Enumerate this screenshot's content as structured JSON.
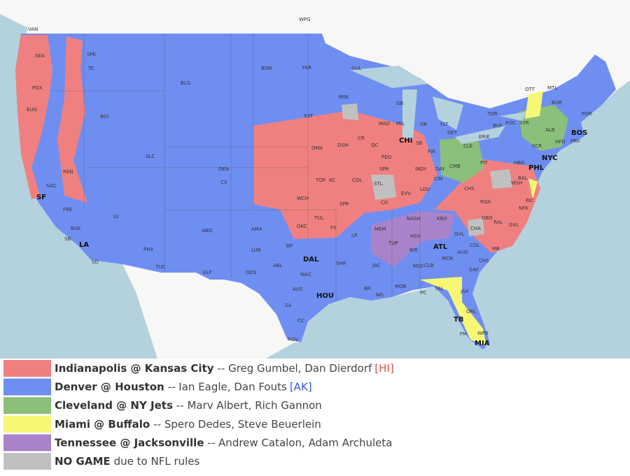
{
  "map_labels": [
    "WPG",
    "VAN",
    "SEA",
    "SPK",
    "TC",
    "PDX",
    "EUG",
    "BOI",
    "BLG",
    "BSM",
    "FAR",
    "DUL",
    "MIN",
    "GB",
    "SXF",
    "MAD",
    "MIL",
    "GR",
    "FLT",
    "DET",
    "TOR",
    "OTT",
    "MTL",
    "BUR",
    "POR",
    "BUF",
    "ROC",
    "SYR",
    "ALB",
    "BOS",
    "PRV",
    "HFD",
    "SCR",
    "ERIE",
    "CLE",
    "SB",
    "FW",
    "CHI",
    "DSM",
    "OMA",
    "CR",
    "QC",
    "PEO",
    "SPR",
    "INDY",
    "DAY",
    "CMB",
    "PIT",
    "HBG",
    "PHL",
    "NYC",
    "SLC",
    "DEN",
    "CS",
    "REN",
    "SAC",
    "SF",
    "TOP",
    "KC",
    "COL",
    "STL",
    "EVV",
    "LOU",
    "CIN",
    "CHS",
    "BAL",
    "WSH",
    "RIC",
    "WCH",
    "SPR",
    "CG",
    "NASH",
    "KNX",
    "FRE",
    "LV",
    "ABQ",
    "OKC",
    "TUL",
    "FS",
    "ROA",
    "NFK",
    "GBO",
    "RAL",
    "GVL",
    "CHA",
    "GVL",
    "HSV",
    "MEM",
    "LR",
    "BAK",
    "SB",
    "LA",
    "AMA",
    "LUB",
    "WF",
    "ATL",
    "BIR",
    "TUP",
    "COL",
    "MB",
    "AUG",
    "CHS",
    "SAV",
    "MCN",
    "CLB",
    "MGY",
    "JAC",
    "SHR",
    "DAL",
    "ABL",
    "ODS",
    "ELP",
    "TUC",
    "PHX",
    "SD",
    "WAC",
    "AUS",
    "HOU",
    "BR",
    "MOB",
    "NO",
    "PC",
    "TAL",
    "JAX",
    "ORL",
    "TB",
    "FM",
    "WPB",
    "MIA",
    "SA",
    "CC",
    "RGV"
  ],
  "legend": [
    {
      "game": "Indianapolis @ Kansas City",
      "announcers": "-- Greg Gumbel, Dan Dierdorf",
      "tag": "[HI]"
    },
    {
      "game": "Denver @ Houston",
      "announcers": "-- Ian Eagle, Dan Fouts",
      "tag": "[AK]"
    },
    {
      "game": "Cleveland @ NY Jets",
      "announcers": "-- Marv Albert, Rich Gannon"
    },
    {
      "game": "Miami @ Buffalo",
      "announcers": "-- Spero Dedes, Steve Beuerlein"
    },
    {
      "game": "Tennessee @ Jacksonville",
      "announcers": "-- Andrew Catalon, Adam Archuleta"
    },
    {
      "game": "NO GAME",
      "announcers": "due to NFL rules"
    }
  ]
}
